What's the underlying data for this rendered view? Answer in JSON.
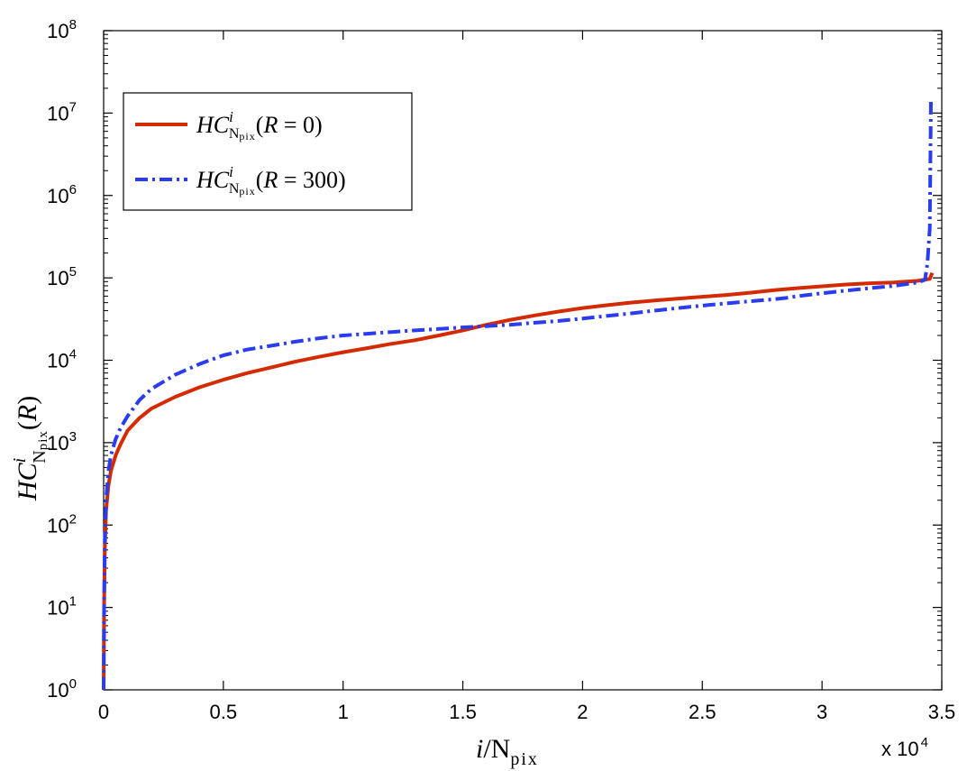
{
  "chart_data": {
    "type": "line",
    "xlabel": "i/N_pix",
    "ylabel": "HC^i_Npix(R)",
    "x_multiplier": "x 10",
    "x_multiplier_exp": "4",
    "xlim": [
      0,
      35000
    ],
    "ylim": [
      1,
      100000000
    ],
    "yscale": "log",
    "x_ticks": [
      0,
      5000,
      10000,
      15000,
      20000,
      25000,
      30000,
      35000
    ],
    "x_tick_labels": [
      "0",
      "0.5",
      "1",
      "1.5",
      "2",
      "2.5",
      "3",
      "3.5"
    ],
    "y_ticks": [
      1,
      10,
      100,
      1000,
      10000,
      100000,
      1000000,
      10000000,
      100000000
    ],
    "y_tick_base": "10",
    "y_tick_exps": [
      "0",
      "1",
      "2",
      "3",
      "4",
      "5",
      "6",
      "7",
      "8"
    ],
    "grid": false,
    "legend_position": "top-left",
    "series": [
      {
        "name": "HC^i_Npix(R = 0)",
        "color": "#d42a00",
        "style": "solid",
        "x": [
          0,
          20,
          50,
          100,
          200,
          300,
          500,
          700,
          1000,
          1500,
          2000,
          3000,
          4000,
          5000,
          6000,
          7000,
          8000,
          9000,
          10000,
          11000,
          12000,
          13000,
          14000,
          15000,
          16000,
          17000,
          18000,
          19000,
          20000,
          21000,
          22000,
          23000,
          24000,
          25000,
          26000,
          27000,
          28000,
          29000,
          30000,
          31000,
          32000,
          33000,
          34000,
          34500,
          34600
        ],
        "y": [
          1,
          10,
          50,
          150,
          300,
          450,
          700,
          950,
          1400,
          2000,
          2600,
          3600,
          4700,
          5800,
          7000,
          8200,
          9600,
          11000,
          12500,
          14000,
          15800,
          17500,
          20000,
          23000,
          27000,
          31000,
          35000,
          39000,
          43000,
          46500,
          50000,
          53000,
          56000,
          59000,
          62000,
          66000,
          71000,
          75000,
          79000,
          83000,
          86000,
          88000,
          92000,
          97000,
          115000
        ]
      },
      {
        "name": "HC^i_Npix(R = 300)",
        "color": "#2a3cf0",
        "style": "dash-dot",
        "x": [
          0,
          20,
          50,
          100,
          200,
          300,
          500,
          700,
          1000,
          1500,
          2000,
          3000,
          4000,
          5000,
          6000,
          7000,
          8000,
          9000,
          10000,
          11000,
          12000,
          13000,
          14000,
          15000,
          16000,
          17000,
          18000,
          19000,
          20000,
          21000,
          22000,
          23000,
          24000,
          25000,
          26000,
          27000,
          28000,
          28500,
          29000,
          30000,
          31000,
          32000,
          33000,
          34000,
          34300,
          34400,
          34500,
          34550
        ],
        "y": [
          1,
          10,
          60,
          200,
          450,
          700,
          1100,
          1500,
          2100,
          3300,
          4500,
          6700,
          9000,
          11500,
          13500,
          15000,
          16800,
          18500,
          20000,
          21000,
          22000,
          23000,
          24000,
          25000,
          26000,
          27000,
          28500,
          30000,
          32000,
          34500,
          37000,
          40000,
          43000,
          46000,
          49000,
          52000,
          55000,
          57000,
          60000,
          65000,
          70000,
          75000,
          80000,
          88000,
          95000,
          150000,
          400000,
          15000000
        ]
      }
    ]
  }
}
